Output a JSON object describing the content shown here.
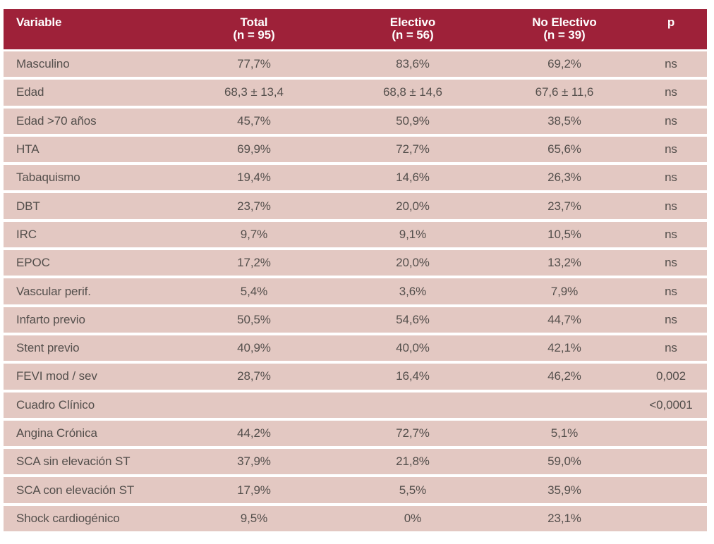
{
  "colors": {
    "header_bg": "#9E2139",
    "row_bg": "#E3C8C2",
    "header_text": "#FFFFFF",
    "body_text": "#544F4C",
    "page_bg": "#FFFFFF"
  },
  "chart_data": {
    "type": "table",
    "title": "",
    "legend_position": "none",
    "grid": "row-stripes-with-white-gaps",
    "columns": [
      {
        "label": "Variable",
        "sublabel": ""
      },
      {
        "label": "Total",
        "sublabel": "(n = 95)"
      },
      {
        "label": "Electivo",
        "sublabel": "(n = 56)"
      },
      {
        "label": "No Electivo",
        "sublabel": "(n = 39)"
      },
      {
        "label": "p",
        "sublabel": ""
      }
    ],
    "rows": [
      [
        "Masculino",
        "77,7%",
        "83,6%",
        "69,2%",
        "ns"
      ],
      [
        "Edad",
        "68,3 ± 13,4",
        "68,8 ± 14,6",
        "67,6 ± 11,6",
        "ns"
      ],
      [
        "Edad >70 años",
        "45,7%",
        "50,9%",
        "38,5%",
        "ns"
      ],
      [
        "HTA",
        "69,9%",
        "72,7%",
        "65,6%",
        "ns"
      ],
      [
        "Tabaquismo",
        "19,4%",
        "14,6%",
        "26,3%",
        "ns"
      ],
      [
        "DBT",
        "23,7%",
        "20,0%",
        "23,7%",
        "ns"
      ],
      [
        "IRC",
        "9,7%",
        "9,1%",
        "10,5%",
        "ns"
      ],
      [
        "EPOC",
        "17,2%",
        "20,0%",
        "13,2%",
        "ns"
      ],
      [
        "Vascular perif.",
        "5,4%",
        "3,6%",
        "7,9%",
        "ns"
      ],
      [
        "Infarto previo",
        "50,5%",
        "54,6%",
        "44,7%",
        "ns"
      ],
      [
        "Stent previo",
        "40,9%",
        "40,0%",
        "42,1%",
        "ns"
      ],
      [
        "FEVI mod / sev",
        "28,7%",
        "16,4%",
        "46,2%",
        "0,002"
      ],
      [
        "Cuadro Clínico",
        "",
        "",
        "",
        "<0,0001"
      ],
      [
        "Angina Crónica",
        "44,2%",
        "72,7%",
        "5,1%",
        ""
      ],
      [
        "SCA sin elevación ST",
        "37,9%",
        "21,8%",
        "59,0%",
        ""
      ],
      [
        "SCA con elevación ST",
        "17,9%",
        "5,5%",
        "35,9%",
        ""
      ],
      [
        "Shock cardiogénico",
        "9,5%",
        "0%",
        "23,1%",
        ""
      ]
    ]
  }
}
